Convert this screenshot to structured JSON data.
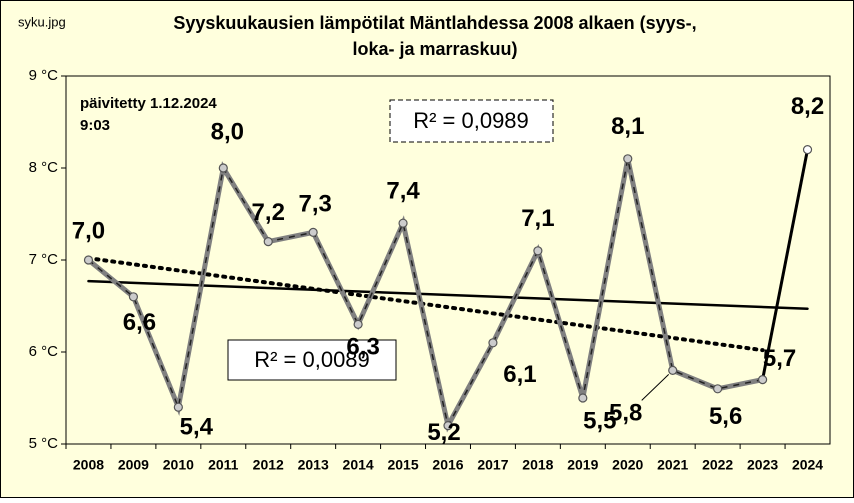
{
  "chart_data": {
    "type": "line",
    "source_label": "syku.jpg",
    "title": [
      "Syyskuukausien lämpötilat Mäntlahdessa 2008 alkaen (syys-,",
      "loka- ja marraskuu)"
    ],
    "updated": [
      "päivitetty  1.12.2024",
      "9:03"
    ],
    "categories": [
      "2008",
      "2009",
      "2010",
      "2011",
      "2012",
      "2013",
      "2014",
      "2015",
      "2016",
      "2017",
      "2018",
      "2019",
      "2020",
      "2021",
      "2022",
      "2023",
      "2024"
    ],
    "values": [
      7.0,
      6.6,
      5.4,
      8.0,
      7.2,
      7.3,
      6.3,
      7.4,
      5.2,
      6.1,
      7.1,
      5.5,
      8.1,
      5.8,
      5.6,
      5.7,
      8.2
    ],
    "value_labels": [
      "7,0",
      "6,6",
      "5,4",
      "8,0",
      "7,2",
      "7,3",
      "6,3",
      "7,4",
      "5,2",
      "6,1",
      "7,1",
      "5,5",
      "8,1",
      "5,8",
      "5,6",
      "5,7",
      "8,2"
    ],
    "color": "#808080",
    "ylim": [
      5,
      9
    ],
    "yticks": [
      {
        "value": 5,
        "label": "5 °C"
      },
      {
        "value": 6,
        "label": "6 °C"
      },
      {
        "value": 7,
        "label": "7 °C"
      },
      {
        "value": 8,
        "label": "8 °C"
      },
      {
        "value": 9,
        "label": "9 °C"
      }
    ],
    "trendlines": [
      {
        "label": "R² = 0,0989",
        "x": [
          "2008",
          "2023"
        ],
        "y": [
          7.02,
          6.02
        ],
        "style": "dotted"
      },
      {
        "label": "R² = 0,0089",
        "x": [
          "2008",
          "2024"
        ],
        "y": [
          6.77,
          6.47
        ],
        "style": "solid"
      }
    ]
  }
}
